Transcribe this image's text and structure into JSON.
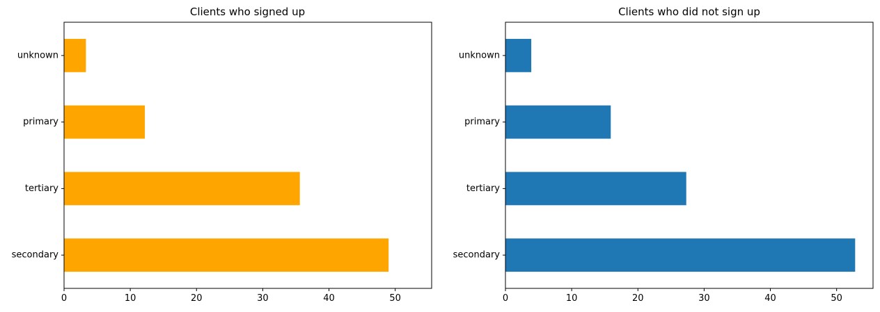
{
  "chart_data": [
    {
      "type": "bar",
      "orientation": "horizontal",
      "title": "Clients who signed up",
      "xlabel": "",
      "ylabel": "",
      "categories": [
        "secondary",
        "tertiary",
        "primary",
        "unknown"
      ],
      "values": [
        49.0,
        35.6,
        12.2,
        3.3
      ],
      "color": "#ffa500",
      "xlim": [
        0,
        55.5
      ],
      "xticks": [
        0,
        10,
        20,
        30,
        40,
        50
      ],
      "grid": false,
      "legend": "none"
    },
    {
      "type": "bar",
      "orientation": "horizontal",
      "title": "Clients who did not sign up",
      "xlabel": "",
      "ylabel": "",
      "categories": [
        "secondary",
        "tertiary",
        "primary",
        "unknown"
      ],
      "values": [
        52.8,
        27.3,
        15.9,
        3.9
      ],
      "color": "#1f77b4",
      "xlim": [
        0,
        55.5
      ],
      "xticks": [
        0,
        10,
        20,
        30,
        40,
        50
      ],
      "grid": false,
      "legend": "none"
    }
  ]
}
